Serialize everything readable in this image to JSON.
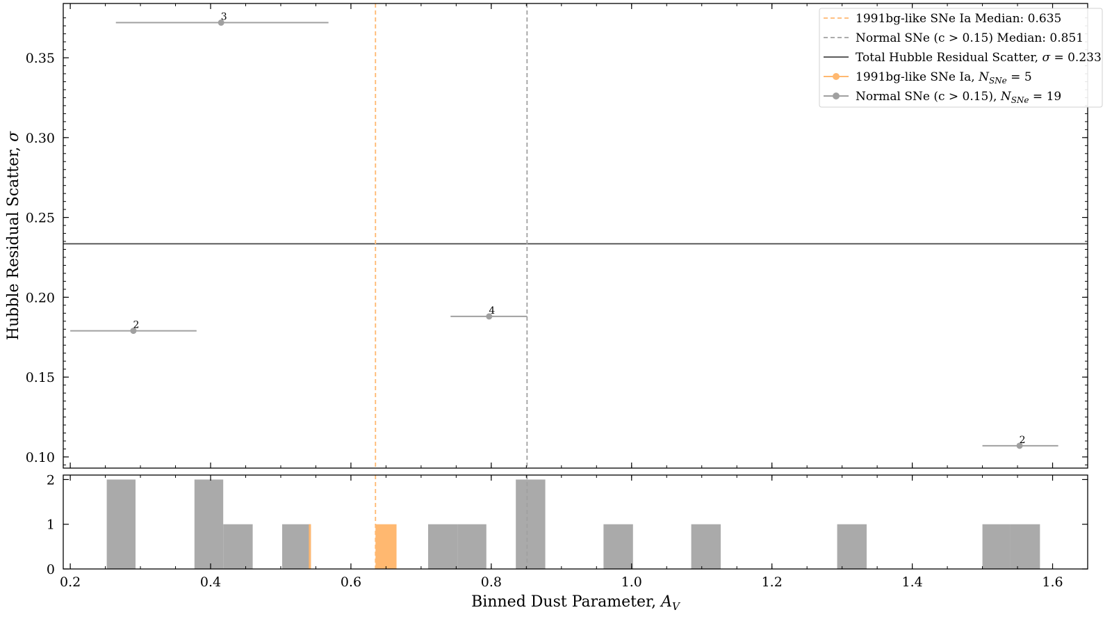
{
  "chart_data": [
    {
      "type": "scatter",
      "xlabel": "Binned Dust Parameter, ",
      "xlabel_var": "A",
      "xlabel_sub": "V",
      "ylabel": "Hubble Residual Scatter, ",
      "ylabel_var": "σ",
      "xlim": [
        0.19,
        1.65
      ],
      "ylim": [
        0.093,
        0.384
      ],
      "xticks": [
        0.2,
        0.4,
        0.6,
        0.8,
        1.0,
        1.2,
        1.4,
        1.6
      ],
      "xtick_labels": [
        "0.2",
        "0.4",
        "0.6",
        "0.8",
        "1.0",
        "1.2",
        "1.4",
        "1.6"
      ],
      "yticks": [
        0.1,
        0.15,
        0.2,
        0.25,
        0.3,
        0.35
      ],
      "ytick_labels": [
        "0.10",
        "0.15",
        "0.20",
        "0.25",
        "0.30",
        "0.35"
      ],
      "points": [
        {
          "x": 0.29,
          "y": 0.179,
          "xerr_low": 0.2,
          "xerr_high": 0.38,
          "count": "2"
        },
        {
          "x": 0.415,
          "y": 0.372,
          "xerr_low": 0.265,
          "xerr_high": 0.568,
          "count": "3"
        },
        {
          "x": 0.797,
          "y": 0.188,
          "xerr_low": 0.742,
          "xerr_high": 0.851,
          "count": "4"
        },
        {
          "x": 1.553,
          "y": 0.107,
          "xerr_low": 1.5,
          "xerr_high": 1.608,
          "count": "2"
        }
      ],
      "vlines": [
        {
          "x": 0.635,
          "color": "#ffb870",
          "style": "dashed"
        },
        {
          "x": 0.851,
          "color": "#a0a0a0",
          "style": "dashed"
        }
      ],
      "hline": {
        "y": 0.2335,
        "color": "#444444"
      },
      "legend": {
        "location": "top-right",
        "entries": [
          {
            "text": "1991bg-like SNe Ia Median: 0.635",
            "marker": "dashed",
            "color": "#ffb870"
          },
          {
            "text": "Normal SNe (c > 0.15) Median: 0.851",
            "marker": "dashed",
            "color": "#a0a0a0"
          },
          {
            "text": "Total Hubble Residual Scatter, ",
            "var": "σ",
            "suffix": " = 0.233",
            "marker": "solid",
            "color": "#444444"
          },
          {
            "text": "1991bg-like SNe Ia, ",
            "var": "N",
            "sub": "SNe",
            "suffix": " = 5",
            "marker": "point",
            "color": "#ffb870"
          },
          {
            "text": "Normal SNe (c > 0.15), ",
            "var": "N",
            "sub": "SNe",
            "suffix": " = 19",
            "marker": "point",
            "color": "#a0a0a0"
          }
        ]
      },
      "colors": {
        "bg91": "#ffb870",
        "normal": "#a0a0a0",
        "total": "#444444"
      }
    },
    {
      "type": "bar",
      "subtype": "histogram",
      "xlim": [
        0.19,
        1.65
      ],
      "ylim": [
        0,
        2.1
      ],
      "yticks": [
        0,
        1,
        2
      ],
      "ytick_labels": [
        "0",
        "1",
        "2"
      ],
      "series": [
        {
          "color": "#aaaaaa",
          "bins": [
            {
              "x0": 0.252,
              "x1": 0.293,
              "value": 2
            },
            {
              "x0": 0.377,
              "x1": 0.418,
              "value": 2
            },
            {
              "x0": 0.418,
              "x1": 0.46,
              "value": 1
            },
            {
              "x0": 0.502,
              "x1": 0.543,
              "value": 1
            },
            {
              "x0": 0.71,
              "x1": 0.752,
              "value": 1
            },
            {
              "x0": 0.752,
              "x1": 0.793,
              "value": 1
            },
            {
              "x0": 0.835,
              "x1": 0.877,
              "value": 2
            },
            {
              "x0": 0.96,
              "x1": 1.002,
              "value": 1
            },
            {
              "x0": 1.085,
              "x1": 1.127,
              "value": 1
            },
            {
              "x0": 1.293,
              "x1": 1.335,
              "value": 1
            },
            {
              "x0": 1.5,
              "x1": 1.54,
              "value": 1
            },
            {
              "x0": 1.54,
              "x1": 1.582,
              "value": 1
            }
          ]
        },
        {
          "color": "#ffb870",
          "bins": [
            {
              "x0": 0.54,
              "x1": 0.543,
              "value": 1
            },
            {
              "x0": 0.635,
              "x1": 0.665,
              "value": 1
            }
          ]
        }
      ],
      "vlines": [
        {
          "x": 0.635,
          "color": "#ffb870",
          "style": "dashed"
        },
        {
          "x": 0.851,
          "color": "#a0a0a0",
          "style": "dashed"
        }
      ]
    }
  ]
}
